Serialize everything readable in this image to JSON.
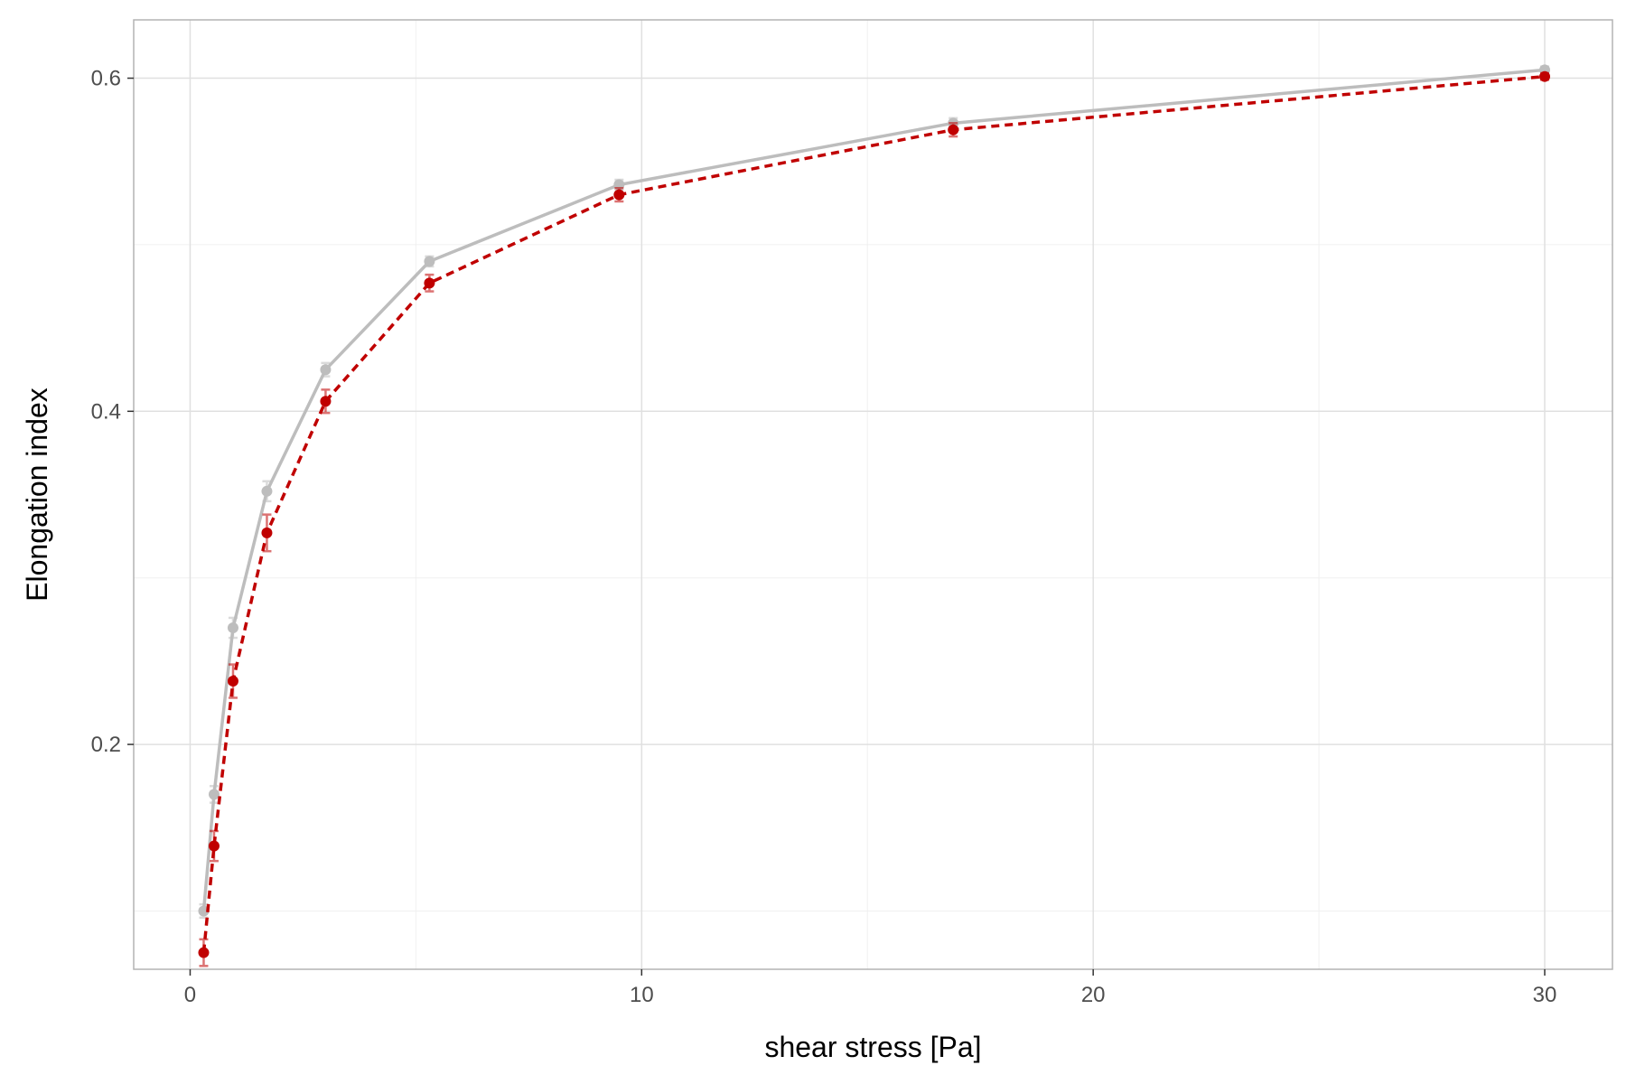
{
  "chart_data": {
    "type": "line",
    "title": "",
    "xlabel": "shear stress [Pa]",
    "ylabel": "Elongation index",
    "xlim": [
      -1.25,
      31.5
    ],
    "ylim": [
      0.065,
      0.635
    ],
    "x_ticks": [
      0,
      10,
      20,
      30
    ],
    "x_tick_labels": [
      "0",
      "10",
      "20",
      "30"
    ],
    "y_ticks": [
      0.2,
      0.4,
      0.6
    ],
    "y_tick_labels": [
      "0.2",
      "0.4",
      "0.6"
    ],
    "grid": true,
    "legend": "none",
    "series": [
      {
        "color": "#bdbdbd",
        "line_style": "solid",
        "x": [
          0.3,
          0.53,
          0.95,
          1.7,
          3.0,
          5.3,
          9.5,
          16.9,
          30.0
        ],
        "y": [
          0.1,
          0.17,
          0.27,
          0.352,
          0.425,
          0.49,
          0.536,
          0.573,
          0.605
        ],
        "err": [
          0.004,
          0.005,
          0.006,
          0.006,
          0.004,
          0.003,
          0.003,
          0.003,
          0.002
        ]
      },
      {
        "color": "#c00000",
        "line_style": "dashed",
        "x": [
          0.3,
          0.53,
          0.95,
          1.7,
          3.0,
          5.3,
          9.5,
          16.9,
          30.0
        ],
        "y": [
          0.075,
          0.139,
          0.238,
          0.327,
          0.406,
          0.477,
          0.53,
          0.569,
          0.601
        ],
        "err": [
          0.008,
          0.009,
          0.01,
          0.011,
          0.007,
          0.005,
          0.004,
          0.004,
          0.002
        ]
      }
    ]
  }
}
